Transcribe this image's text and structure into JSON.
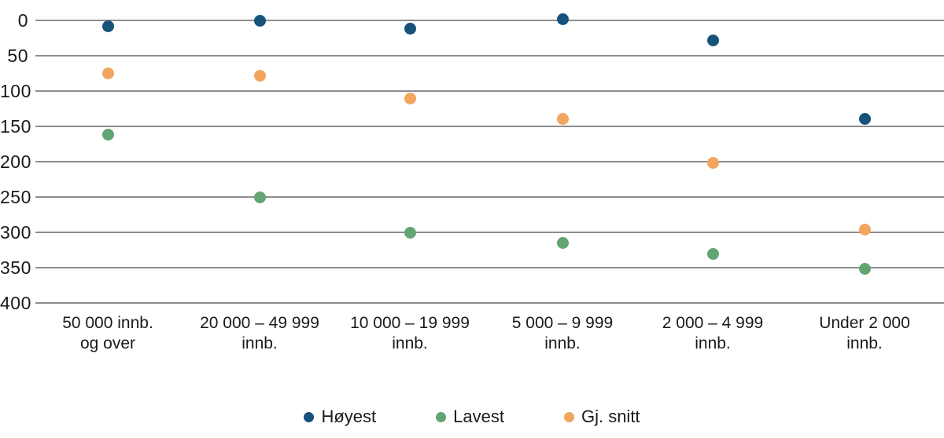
{
  "chart_data": {
    "type": "scatter",
    "subtype": "dot-plot",
    "title": "",
    "xlabel": "",
    "ylabel": "",
    "categories": [
      [
        "50 000 innb.",
        "og over"
      ],
      [
        "20 000 – 49 999",
        "innb."
      ],
      [
        "10 000 – 19 999",
        "innb."
      ],
      [
        "5 000 – 9 999",
        "innb."
      ],
      [
        "2 000 – 4 999",
        "innb."
      ],
      [
        "Under 2 000",
        "innb."
      ]
    ],
    "series": [
      {
        "name": "Høyest",
        "color": "#17527b",
        "values": [
          8,
          0,
          12,
          -2,
          28,
          139
        ]
      },
      {
        "name": "Lavest",
        "color": "#63a572",
        "values": [
          162,
          250,
          300,
          315,
          330,
          352
        ]
      },
      {
        "name": "Gj. snitt",
        "color": "#f2a55f",
        "values": [
          75,
          78,
          110,
          139,
          202,
          296
        ]
      }
    ],
    "y_axis": {
      "min": 0,
      "max": 400,
      "ticks": [
        0,
        50,
        100,
        150,
        200,
        250,
        300,
        350,
        400
      ],
      "inverted": true
    },
    "grid": "horizontal",
    "grid_color": "#8d8d8d",
    "text_color": "#1a1a1a",
    "background_color": "#ffffff",
    "legend": {
      "position": "bottom-center",
      "entries": [
        {
          "label": "Høyest",
          "color": "#17527b"
        },
        {
          "label": "Lavest",
          "color": "#63a572"
        },
        {
          "label": "Gj. snitt",
          "color": "#f2a55f"
        }
      ]
    }
  }
}
